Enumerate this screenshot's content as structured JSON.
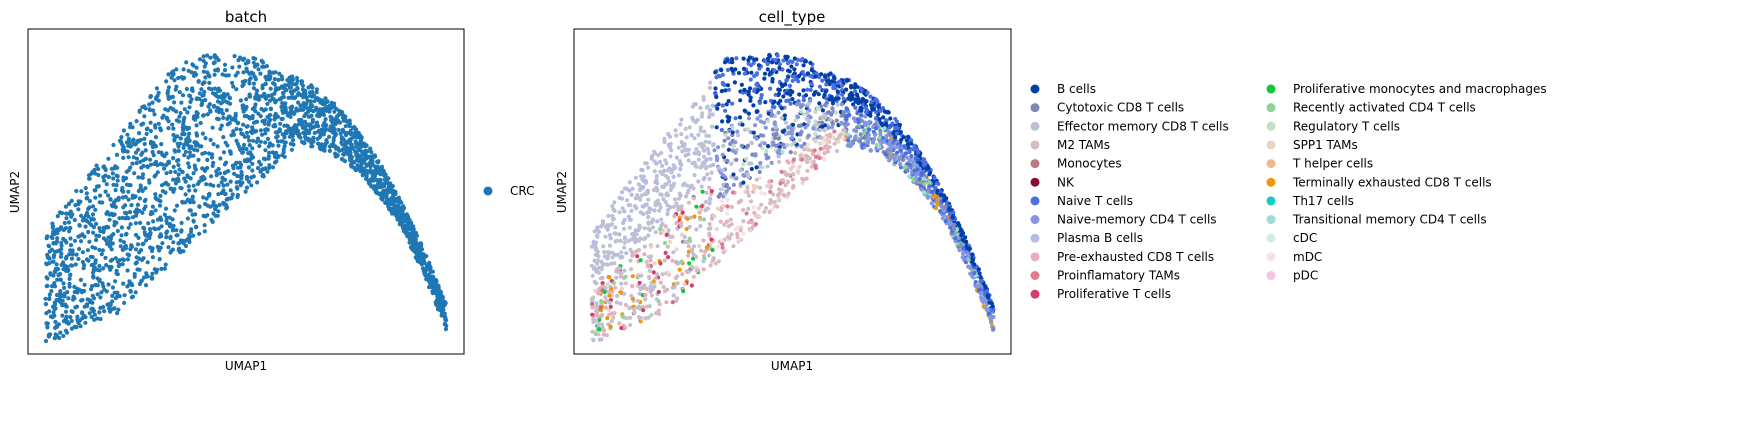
{
  "chart_data": [
    {
      "type": "scatter",
      "title": "batch",
      "xlabel": "UMAP1",
      "ylabel": "UMAP2",
      "xlim": [
        0,
        100
      ],
      "ylim": [
        0,
        100
      ],
      "grid": false,
      "axis_ticks": "none",
      "legend": {
        "placement": "right",
        "entries": [
          {
            "name": "CRC",
            "color": "#1f77b4"
          }
        ]
      },
      "series": [
        {
          "name": "CRC",
          "color": "#1f77b4",
          "n_points": 2500
        }
      ],
      "shape": "arch (embedding cloud)"
    },
    {
      "type": "scatter",
      "title": "cell_type",
      "xlabel": "UMAP1",
      "ylabel": "UMAP2",
      "xlim": [
        0,
        100
      ],
      "ylim": [
        0,
        100
      ],
      "grid": false,
      "axis_ticks": "none",
      "legend": {
        "placement": "right",
        "columns": 2
      },
      "series": [
        {
          "name": "B cells",
          "color": "#023fa5"
        },
        {
          "name": "Cytotoxic CD8 T cells",
          "color": "#7d87b9"
        },
        {
          "name": "Effector memory CD8 T cells",
          "color": "#bec1d4"
        },
        {
          "name": "M2 TAMs",
          "color": "#d6bcc0"
        },
        {
          "name": "Monocytes",
          "color": "#bb7784"
        },
        {
          "name": "NK",
          "color": "#8e063b"
        },
        {
          "name": "Naive T cells",
          "color": "#4a6fe3"
        },
        {
          "name": "Naive-memory CD4 T cells",
          "color": "#8595e1"
        },
        {
          "name": "Plasma B cells",
          "color": "#b5bbe3"
        },
        {
          "name": "Pre-exhausted CD8 T cells",
          "color": "#e6afb9"
        },
        {
          "name": "Proinflamatory TAMs",
          "color": "#e07b91"
        },
        {
          "name": "Proliferative T cells",
          "color": "#d33f6a"
        },
        {
          "name": "Proliferative monocytes and macrophages",
          "color": "#11c638"
        },
        {
          "name": "Recently activated CD4 T cells",
          "color": "#8dd593"
        },
        {
          "name": "Regulatory T cells",
          "color": "#c6dec7"
        },
        {
          "name": "SPP1 TAMs",
          "color": "#ead3c6"
        },
        {
          "name": "T helper cells",
          "color": "#f0b98d"
        },
        {
          "name": "Terminally exhausted CD8 T cells",
          "color": "#ef9708"
        },
        {
          "name": "Th17 cells",
          "color": "#0fcfc0"
        },
        {
          "name": "Transitional memory CD4 T cells",
          "color": "#9cded6"
        },
        {
          "name": "cDC",
          "color": "#d5eae7"
        },
        {
          "name": "mDC",
          "color": "#f3e1eb"
        },
        {
          "name": "pDC",
          "color": "#f6c4e1"
        }
      ]
    }
  ]
}
